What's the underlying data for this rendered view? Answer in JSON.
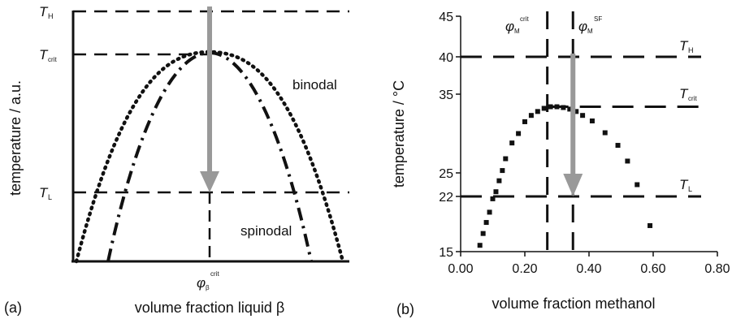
{
  "colors": {
    "ink": "#111111",
    "arrow": "#999999",
    "background": "#ffffff"
  },
  "panels": {
    "a": {
      "label": "(a)",
      "ylabel": "temperature / a.u.",
      "xlabel": "volume fraction liquid β",
      "y_marks": [
        {
          "sym": "T",
          "sub": "H"
        },
        {
          "sym": "T",
          "sub": "crit"
        },
        {
          "sym": "T",
          "sub": "L"
        }
      ],
      "phi": {
        "sym": "φ",
        "sub": "β",
        "sup": "crit"
      },
      "binodal_label": "binodal",
      "spinodal_label": "spinodal"
    },
    "b": {
      "label": "(b)",
      "ylabel": "temperature / °C",
      "xlabel": "volume fraction methanol",
      "level_marks": [
        {
          "sym": "T",
          "sub": "H"
        },
        {
          "sym": "T",
          "sub": "crit"
        },
        {
          "sym": "T",
          "sub": "L"
        }
      ],
      "phi_crit": {
        "sym": "φ",
        "sub": "M",
        "sup": "crit"
      },
      "phi_sf": {
        "sym": "φ",
        "sub": "M",
        "sup": "SF"
      }
    }
  },
  "chart_data": [
    {
      "type": "line",
      "panel": "a",
      "axis_scale": "arbitrary (no numeric ticks)",
      "grid": false,
      "series": [
        {
          "name": "binodal",
          "style": "dotted",
          "x": [
            0.02,
            0.1,
            0.2,
            0.3,
            0.4,
            0.5,
            0.6,
            0.7,
            0.8,
            0.9,
            0.98
          ],
          "y": [
            0.0,
            0.35,
            0.62,
            0.82,
            0.95,
            1.0,
            0.95,
            0.82,
            0.62,
            0.35,
            0.0
          ]
        },
        {
          "name": "spinodal",
          "style": "dash-dot",
          "x": [
            0.14,
            0.2,
            0.3,
            0.4,
            0.5,
            0.6,
            0.7,
            0.8,
            0.86
          ],
          "y": [
            0.0,
            0.38,
            0.74,
            0.94,
            1.0,
            0.94,
            0.74,
            0.38,
            0.0
          ]
        }
      ],
      "levels": {
        "T_H": 1.18,
        "T_crit": 1.0,
        "T_L": 0.33
      },
      "phi_crit": 0.5,
      "quench_arrow": {
        "x": 0.5,
        "from": "T_H",
        "to": "T_L"
      }
    },
    {
      "type": "scatter",
      "panel": "b",
      "xlim": [
        0.0,
        0.8
      ],
      "ylim": [
        15,
        45
      ],
      "x_ticks": [
        0.0,
        0.2,
        0.4,
        0.6,
        0.8
      ],
      "x_tick_labels": [
        "0.00",
        "0.20",
        "0.40",
        "0.60",
        "0.80"
      ],
      "y_ticks": [
        15,
        22,
        25,
        35,
        40,
        45
      ],
      "grid": false,
      "series": [
        {
          "x": [
            0.06,
            0.07,
            0.08,
            0.09,
            0.1,
            0.11,
            0.12,
            0.13,
            0.14,
            0.16,
            0.18,
            0.2,
            0.22,
            0.24,
            0.26,
            0.28,
            0.3,
            0.32,
            0.34,
            0.36,
            0.38,
            0.41,
            0.45,
            0.49,
            0.52,
            0.55,
            0.59
          ],
          "y": [
            15.8,
            17.3,
            18.7,
            20.0,
            21.7,
            22.6,
            24.0,
            25.3,
            26.8,
            28.8,
            30.0,
            31.5,
            32.3,
            32.8,
            33.2,
            33.4,
            33.4,
            33.3,
            33.1,
            32.8,
            32.3,
            31.6,
            30.1,
            28.5,
            26.5,
            23.5,
            18.3
          ]
        }
      ],
      "levels": {
        "T_H": 40,
        "T_crit": 33.4,
        "T_L": 22
      },
      "phi_crit": 0.27,
      "phi_sf": 0.35,
      "quench_arrow": {
        "x": 0.35,
        "from": 40,
        "to": 22
      }
    }
  ]
}
